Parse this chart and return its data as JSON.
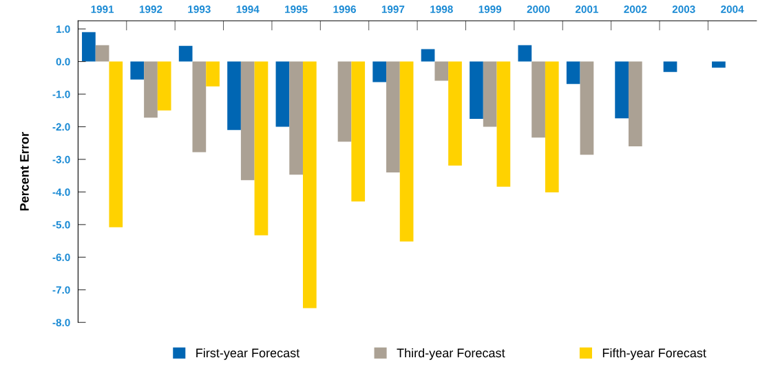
{
  "chart_data": {
    "type": "bar",
    "ylabel": "Percent Error",
    "categories": [
      "1991",
      "1992",
      "1993",
      "1994",
      "1995",
      "1996",
      "1997",
      "1998",
      "1999",
      "2000",
      "2001",
      "2002",
      "2003",
      "2004"
    ],
    "series": [
      {
        "name": "First-year Forecast",
        "color": "#0066b3",
        "values": [
          0.9,
          -0.55,
          0.48,
          -2.1,
          -2.0,
          null,
          -0.63,
          0.38,
          -1.76,
          0.5,
          -0.69,
          -1.74,
          -0.32,
          -0.19
        ]
      },
      {
        "name": "Third-year Forecast",
        "color": "#aba194",
        "values": [
          0.5,
          -1.72,
          -2.78,
          -3.64,
          -3.47,
          -2.46,
          -3.4,
          -0.59,
          -2.0,
          -2.33,
          -2.86,
          -2.6,
          null,
          null
        ]
      },
      {
        "name": "Fifth-year Forecast",
        "color": "#ffd200",
        "values": [
          -5.08,
          -1.5,
          -0.76,
          -5.33,
          -7.56,
          -4.29,
          -5.52,
          -3.19,
          -3.84,
          -4.01,
          null,
          null,
          null,
          null
        ]
      }
    ],
    "ylim": [
      -8.0,
      1.25
    ],
    "yticks": [
      {
        "value": 1,
        "label": "1.0"
      },
      {
        "value": 0,
        "label": "0.0"
      },
      {
        "value": -1,
        "label": "-1.0"
      },
      {
        "value": -2,
        "label": "-2.0"
      },
      {
        "value": -3,
        "label": "-3.0"
      },
      {
        "value": -4,
        "label": "-4.0"
      },
      {
        "value": -5,
        "label": "-5.0"
      },
      {
        "value": -6,
        "label": "-6.0"
      },
      {
        "value": -7,
        "label": "-7.0"
      },
      {
        "value": -8,
        "label": "-8.0"
      }
    ],
    "grid": false,
    "legend": "bottom"
  }
}
